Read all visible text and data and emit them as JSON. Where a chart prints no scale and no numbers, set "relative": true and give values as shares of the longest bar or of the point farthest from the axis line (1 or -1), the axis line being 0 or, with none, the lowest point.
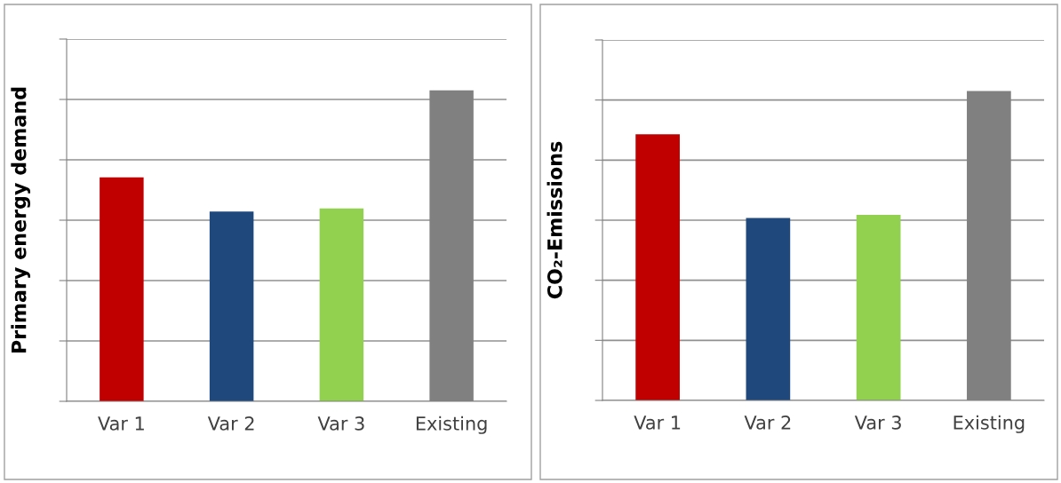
{
  "chart_data": [
    {
      "type": "bar",
      "ylabel": "Primary energy demand",
      "categories": [
        "Var 1",
        "Var 2",
        "Var 3",
        "Existing"
      ],
      "relative": true,
      "grid": "y",
      "colors": [
        "#c00000",
        "#1f497d",
        "#92d050",
        "#808080"
      ],
      "values": [
        0.72,
        0.61,
        0.62,
        1
      ]
    },
    {
      "type": "bar",
      "ylabel": "CO₂-Emissions",
      "categories": [
        "Var 1",
        "Var 2",
        "Var 3",
        "Existing"
      ],
      "relative": true,
      "grid": "y",
      "colors": [
        "#c00000",
        "#1f497d",
        "#92d050",
        "#808080"
      ],
      "values": [
        0.86,
        0.59,
        0.6,
        1
      ]
    }
  ]
}
